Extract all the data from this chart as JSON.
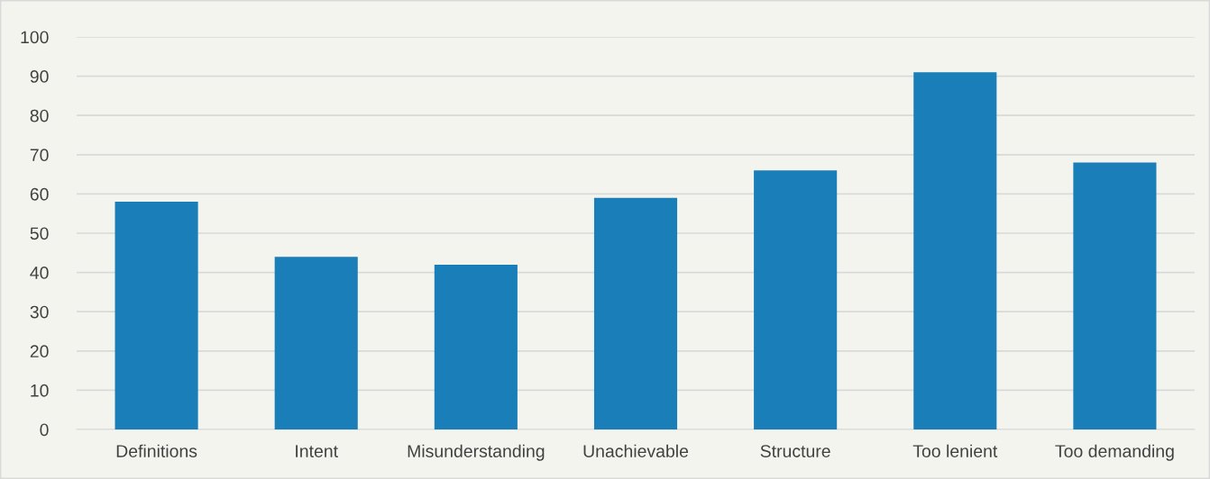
{
  "chart_data": {
    "type": "bar",
    "categories": [
      "Definitions",
      "Intent",
      "Misunderstanding",
      "Unachievable",
      "Structure",
      "Too lenient",
      "Too demanding"
    ],
    "values": [
      58,
      44,
      42,
      59,
      66,
      91,
      68
    ],
    "color": "#1a7fb8",
    "ylim": [
      0,
      100
    ],
    "yticks": [
      0,
      10,
      20,
      30,
      40,
      50,
      60,
      70,
      80,
      90,
      100
    ],
    "grid": "y",
    "legend": false
  }
}
